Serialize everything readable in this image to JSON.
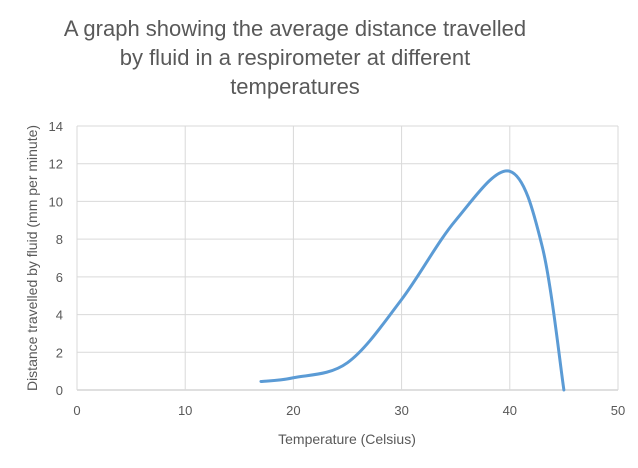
{
  "chart_data": {
    "type": "line",
    "title": [
      "A graph showing the average distance travelled",
      "by fluid in a respirometer at different",
      "temperatures"
    ],
    "xlabel": "Temperature (Celsius)",
    "ylabel": "Distance travelled by fluid (mm per minute)",
    "xlim": [
      0,
      50
    ],
    "ylim": [
      0,
      14
    ],
    "xticks": [
      0,
      10,
      20,
      30,
      40,
      50
    ],
    "yticks": [
      0,
      2,
      4,
      6,
      8,
      10,
      12,
      14
    ],
    "grid": true,
    "smooth": true,
    "series": [
      {
        "name": "Average distance",
        "color": "#5b9bd5",
        "x": [
          17,
          20,
          25,
          30,
          35,
          40,
          43,
          45
        ],
        "y": [
          0.45,
          0.65,
          1.45,
          4.8,
          9.0,
          11.6,
          7.6,
          0
        ]
      }
    ]
  }
}
